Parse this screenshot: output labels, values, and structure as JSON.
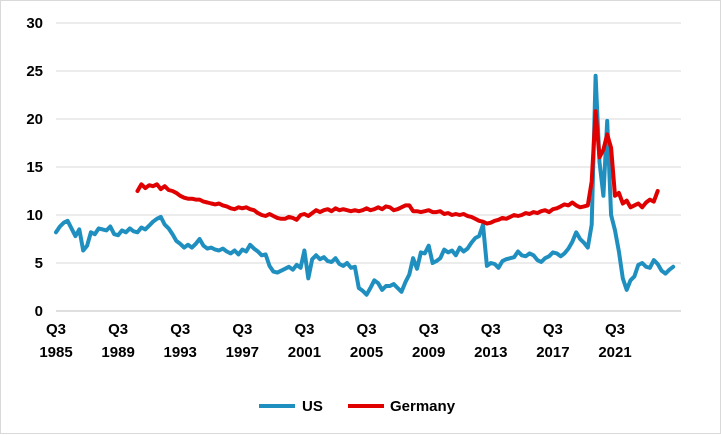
{
  "chart_data": {
    "type": "line",
    "title": "",
    "xlabel": "",
    "ylabel": "",
    "ylim": [
      0,
      30
    ],
    "yticks": [
      0,
      5,
      10,
      15,
      20,
      25,
      30
    ],
    "xlim": [
      1985.5,
      2025.75
    ],
    "xtick_labels": [
      {
        "q": "Q3",
        "year": "1985",
        "x": 1985.5
      },
      {
        "q": "Q3",
        "year": "1989",
        "x": 1989.5
      },
      {
        "q": "Q3",
        "year": "1993",
        "x": 1993.5
      },
      {
        "q": "Q3",
        "year": "1997",
        "x": 1997.5
      },
      {
        "q": "Q3",
        "year": "2001",
        "x": 2001.5
      },
      {
        "q": "Q3",
        "year": "2005",
        "x": 2005.5
      },
      {
        "q": "Q3",
        "year": "2009",
        "x": 2009.5
      },
      {
        "q": "Q3",
        "year": "2013",
        "x": 2013.5
      },
      {
        "q": "Q3",
        "year": "2017",
        "x": 2017.5
      },
      {
        "q": "Q3",
        "year": "2021",
        "x": 2021.5
      }
    ],
    "grid": "horizontal",
    "legend_position": "bottom",
    "series": [
      {
        "name": "US",
        "color": "#1F8FBF",
        "points": [
          [
            1985.5,
            8.2
          ],
          [
            1985.75,
            8.8
          ],
          [
            1986.0,
            9.2
          ],
          [
            1986.25,
            9.4
          ],
          [
            1986.5,
            8.6
          ],
          [
            1986.75,
            7.8
          ],
          [
            1987.0,
            8.5
          ],
          [
            1987.25,
            6.3
          ],
          [
            1987.5,
            6.8
          ],
          [
            1987.75,
            8.2
          ],
          [
            1988.0,
            8.0
          ],
          [
            1988.25,
            8.6
          ],
          [
            1988.5,
            8.5
          ],
          [
            1988.75,
            8.4
          ],
          [
            1989.0,
            8.8
          ],
          [
            1989.25,
            8.0
          ],
          [
            1989.5,
            7.9
          ],
          [
            1989.75,
            8.4
          ],
          [
            1990.0,
            8.2
          ],
          [
            1990.25,
            8.6
          ],
          [
            1990.5,
            8.3
          ],
          [
            1990.75,
            8.2
          ],
          [
            1991.0,
            8.7
          ],
          [
            1991.25,
            8.5
          ],
          [
            1991.5,
            8.9
          ],
          [
            1991.75,
            9.3
          ],
          [
            1992.0,
            9.6
          ],
          [
            1992.25,
            9.8
          ],
          [
            1992.5,
            9.0
          ],
          [
            1992.75,
            8.6
          ],
          [
            1993.0,
            8.0
          ],
          [
            1993.25,
            7.3
          ],
          [
            1993.5,
            7.0
          ],
          [
            1993.75,
            6.6
          ],
          [
            1994.0,
            6.9
          ],
          [
            1994.25,
            6.6
          ],
          [
            1994.5,
            7.0
          ],
          [
            1994.75,
            7.5
          ],
          [
            1995.0,
            6.8
          ],
          [
            1995.25,
            6.5
          ],
          [
            1995.5,
            6.6
          ],
          [
            1995.75,
            6.4
          ],
          [
            1996.0,
            6.3
          ],
          [
            1996.25,
            6.5
          ],
          [
            1996.5,
            6.2
          ],
          [
            1996.75,
            6.0
          ],
          [
            1997.0,
            6.3
          ],
          [
            1997.25,
            5.9
          ],
          [
            1997.5,
            6.4
          ],
          [
            1997.75,
            6.2
          ],
          [
            1998.0,
            6.9
          ],
          [
            1998.25,
            6.5
          ],
          [
            1998.5,
            6.2
          ],
          [
            1998.75,
            5.8
          ],
          [
            1999.0,
            5.9
          ],
          [
            1999.25,
            4.7
          ],
          [
            1999.5,
            4.1
          ],
          [
            1999.75,
            4.0
          ],
          [
            2000.0,
            4.2
          ],
          [
            2000.25,
            4.4
          ],
          [
            2000.5,
            4.6
          ],
          [
            2000.75,
            4.3
          ],
          [
            2001.0,
            4.8
          ],
          [
            2001.25,
            4.5
          ],
          [
            2001.5,
            6.3
          ],
          [
            2001.75,
            3.4
          ],
          [
            2002.0,
            5.4
          ],
          [
            2002.25,
            5.8
          ],
          [
            2002.5,
            5.4
          ],
          [
            2002.75,
            5.6
          ],
          [
            2003.0,
            5.2
          ],
          [
            2003.25,
            5.1
          ],
          [
            2003.5,
            5.5
          ],
          [
            2003.75,
            4.9
          ],
          [
            2004.0,
            4.7
          ],
          [
            2004.25,
            5.0
          ],
          [
            2004.5,
            4.5
          ],
          [
            2004.75,
            4.6
          ],
          [
            2005.0,
            2.4
          ],
          [
            2005.25,
            2.1
          ],
          [
            2005.5,
            1.7
          ],
          [
            2005.75,
            2.4
          ],
          [
            2006.0,
            3.2
          ],
          [
            2006.25,
            2.9
          ],
          [
            2006.5,
            2.2
          ],
          [
            2006.75,
            2.6
          ],
          [
            2007.0,
            2.6
          ],
          [
            2007.25,
            2.8
          ],
          [
            2007.5,
            2.4
          ],
          [
            2007.75,
            2.0
          ],
          [
            2008.0,
            3.0
          ],
          [
            2008.25,
            3.8
          ],
          [
            2008.5,
            5.5
          ],
          [
            2008.75,
            4.4
          ],
          [
            2009.0,
            6.1
          ],
          [
            2009.25,
            6.0
          ],
          [
            2009.5,
            6.8
          ],
          [
            2009.75,
            5.0
          ],
          [
            2010.0,
            5.2
          ],
          [
            2010.25,
            5.5
          ],
          [
            2010.5,
            6.4
          ],
          [
            2010.75,
            6.1
          ],
          [
            2011.0,
            6.3
          ],
          [
            2011.25,
            5.8
          ],
          [
            2011.5,
            6.6
          ],
          [
            2011.75,
            6.2
          ],
          [
            2012.0,
            6.5
          ],
          [
            2012.25,
            7.1
          ],
          [
            2012.5,
            7.6
          ],
          [
            2012.75,
            7.8
          ],
          [
            2013.0,
            9.0
          ],
          [
            2013.25,
            4.7
          ],
          [
            2013.5,
            5.0
          ],
          [
            2013.75,
            4.9
          ],
          [
            2014.0,
            4.5
          ],
          [
            2014.25,
            5.2
          ],
          [
            2014.5,
            5.4
          ],
          [
            2014.75,
            5.5
          ],
          [
            2015.0,
            5.6
          ],
          [
            2015.25,
            6.2
          ],
          [
            2015.5,
            5.8
          ],
          [
            2015.75,
            5.7
          ],
          [
            2016.0,
            6.0
          ],
          [
            2016.25,
            5.8
          ],
          [
            2016.5,
            5.3
          ],
          [
            2016.75,
            5.1
          ],
          [
            2017.0,
            5.5
          ],
          [
            2017.25,
            5.7
          ],
          [
            2017.5,
            6.1
          ],
          [
            2017.75,
            6.0
          ],
          [
            2018.0,
            5.7
          ],
          [
            2018.25,
            6.0
          ],
          [
            2018.5,
            6.5
          ],
          [
            2018.75,
            7.2
          ],
          [
            2019.0,
            8.2
          ],
          [
            2019.25,
            7.5
          ],
          [
            2019.5,
            7.1
          ],
          [
            2019.75,
            6.6
          ],
          [
            2020.0,
            9.0
          ],
          [
            2020.25,
            24.5
          ],
          [
            2020.5,
            15.5
          ],
          [
            2020.75,
            12.0
          ],
          [
            2021.0,
            19.8
          ],
          [
            2021.25,
            10.0
          ],
          [
            2021.5,
            8.4
          ],
          [
            2021.75,
            6.2
          ],
          [
            2022.0,
            3.4
          ],
          [
            2022.25,
            2.2
          ],
          [
            2022.5,
            3.2
          ],
          [
            2022.75,
            3.6
          ],
          [
            2023.0,
            4.8
          ],
          [
            2023.25,
            5.0
          ],
          [
            2023.5,
            4.6
          ],
          [
            2023.75,
            4.5
          ],
          [
            2024.0,
            5.3
          ],
          [
            2024.25,
            4.9
          ],
          [
            2024.5,
            4.2
          ],
          [
            2024.75,
            3.9
          ],
          [
            2025.0,
            4.3
          ],
          [
            2025.25,
            4.6
          ]
        ]
      },
      {
        "name": "Germany",
        "color": "#E00000",
        "points": [
          [
            1990.75,
            12.5
          ],
          [
            1991.0,
            13.2
          ],
          [
            1991.25,
            12.8
          ],
          [
            1991.5,
            13.1
          ],
          [
            1991.75,
            13.0
          ],
          [
            1992.0,
            13.2
          ],
          [
            1992.25,
            12.7
          ],
          [
            1992.5,
            13.0
          ],
          [
            1992.75,
            12.6
          ],
          [
            1993.0,
            12.5
          ],
          [
            1993.25,
            12.3
          ],
          [
            1993.5,
            12.0
          ],
          [
            1993.75,
            11.8
          ],
          [
            1994.0,
            11.7
          ],
          [
            1994.25,
            11.7
          ],
          [
            1994.5,
            11.6
          ],
          [
            1994.75,
            11.6
          ],
          [
            1995.0,
            11.4
          ],
          [
            1995.25,
            11.3
          ],
          [
            1995.5,
            11.2
          ],
          [
            1995.75,
            11.1
          ],
          [
            1996.0,
            11.2
          ],
          [
            1996.25,
            11.0
          ],
          [
            1996.5,
            10.9
          ],
          [
            1996.75,
            10.7
          ],
          [
            1997.0,
            10.6
          ],
          [
            1997.25,
            10.8
          ],
          [
            1997.5,
            10.7
          ],
          [
            1997.75,
            10.8
          ],
          [
            1998.0,
            10.6
          ],
          [
            1998.25,
            10.5
          ],
          [
            1998.5,
            10.2
          ],
          [
            1998.75,
            10.0
          ],
          [
            1999.0,
            9.9
          ],
          [
            1999.25,
            10.1
          ],
          [
            1999.5,
            9.9
          ],
          [
            1999.75,
            9.7
          ],
          [
            2000.0,
            9.6
          ],
          [
            2000.25,
            9.6
          ],
          [
            2000.5,
            9.8
          ],
          [
            2000.75,
            9.7
          ],
          [
            2001.0,
            9.5
          ],
          [
            2001.25,
            10.0
          ],
          [
            2001.5,
            10.1
          ],
          [
            2001.75,
            9.9
          ],
          [
            2002.0,
            10.2
          ],
          [
            2002.25,
            10.5
          ],
          [
            2002.5,
            10.3
          ],
          [
            2002.75,
            10.5
          ],
          [
            2003.0,
            10.6
          ],
          [
            2003.25,
            10.4
          ],
          [
            2003.5,
            10.7
          ],
          [
            2003.75,
            10.5
          ],
          [
            2004.0,
            10.6
          ],
          [
            2004.25,
            10.5
          ],
          [
            2004.5,
            10.4
          ],
          [
            2004.75,
            10.5
          ],
          [
            2005.0,
            10.4
          ],
          [
            2005.25,
            10.5
          ],
          [
            2005.5,
            10.7
          ],
          [
            2005.75,
            10.5
          ],
          [
            2006.0,
            10.6
          ],
          [
            2006.25,
            10.8
          ],
          [
            2006.5,
            10.6
          ],
          [
            2006.75,
            10.9
          ],
          [
            2007.0,
            10.8
          ],
          [
            2007.25,
            10.5
          ],
          [
            2007.5,
            10.6
          ],
          [
            2007.75,
            10.8
          ],
          [
            2008.0,
            11.0
          ],
          [
            2008.25,
            11.0
          ],
          [
            2008.5,
            10.4
          ],
          [
            2008.75,
            10.4
          ],
          [
            2009.0,
            10.3
          ],
          [
            2009.25,
            10.4
          ],
          [
            2009.5,
            10.5
          ],
          [
            2009.75,
            10.3
          ],
          [
            2010.0,
            10.3
          ],
          [
            2010.25,
            10.4
          ],
          [
            2010.5,
            10.1
          ],
          [
            2010.75,
            10.2
          ],
          [
            2011.0,
            10.0
          ],
          [
            2011.25,
            10.1
          ],
          [
            2011.5,
            10.0
          ],
          [
            2011.75,
            10.1
          ],
          [
            2012.0,
            9.9
          ],
          [
            2012.25,
            9.8
          ],
          [
            2012.5,
            9.6
          ],
          [
            2012.75,
            9.4
          ],
          [
            2013.0,
            9.3
          ],
          [
            2013.25,
            9.1
          ],
          [
            2013.5,
            9.2
          ],
          [
            2013.75,
            9.4
          ],
          [
            2014.0,
            9.5
          ],
          [
            2014.25,
            9.7
          ],
          [
            2014.5,
            9.6
          ],
          [
            2014.75,
            9.8
          ],
          [
            2015.0,
            10.0
          ],
          [
            2015.25,
            9.9
          ],
          [
            2015.5,
            10.0
          ],
          [
            2015.75,
            10.2
          ],
          [
            2016.0,
            10.1
          ],
          [
            2016.25,
            10.3
          ],
          [
            2016.5,
            10.2
          ],
          [
            2016.75,
            10.4
          ],
          [
            2017.0,
            10.5
          ],
          [
            2017.25,
            10.3
          ],
          [
            2017.5,
            10.6
          ],
          [
            2017.75,
            10.7
          ],
          [
            2018.0,
            10.9
          ],
          [
            2018.25,
            11.1
          ],
          [
            2018.5,
            11.0
          ],
          [
            2018.75,
            11.3
          ],
          [
            2019.0,
            11.0
          ],
          [
            2019.25,
            10.8
          ],
          [
            2019.5,
            10.9
          ],
          [
            2019.75,
            11.0
          ],
          [
            2020.0,
            13.5
          ],
          [
            2020.25,
            20.8
          ],
          [
            2020.5,
            16.0
          ],
          [
            2020.75,
            16.8
          ],
          [
            2021.0,
            18.4
          ],
          [
            2021.25,
            17.0
          ],
          [
            2021.5,
            12.0
          ],
          [
            2021.75,
            12.3
          ],
          [
            2022.0,
            11.2
          ],
          [
            2022.25,
            11.5
          ],
          [
            2022.5,
            10.8
          ],
          [
            2022.75,
            11.0
          ],
          [
            2023.0,
            11.2
          ],
          [
            2023.25,
            10.8
          ],
          [
            2023.5,
            11.3
          ],
          [
            2023.75,
            11.6
          ],
          [
            2024.0,
            11.4
          ],
          [
            2024.25,
            12.5
          ]
        ]
      }
    ]
  }
}
